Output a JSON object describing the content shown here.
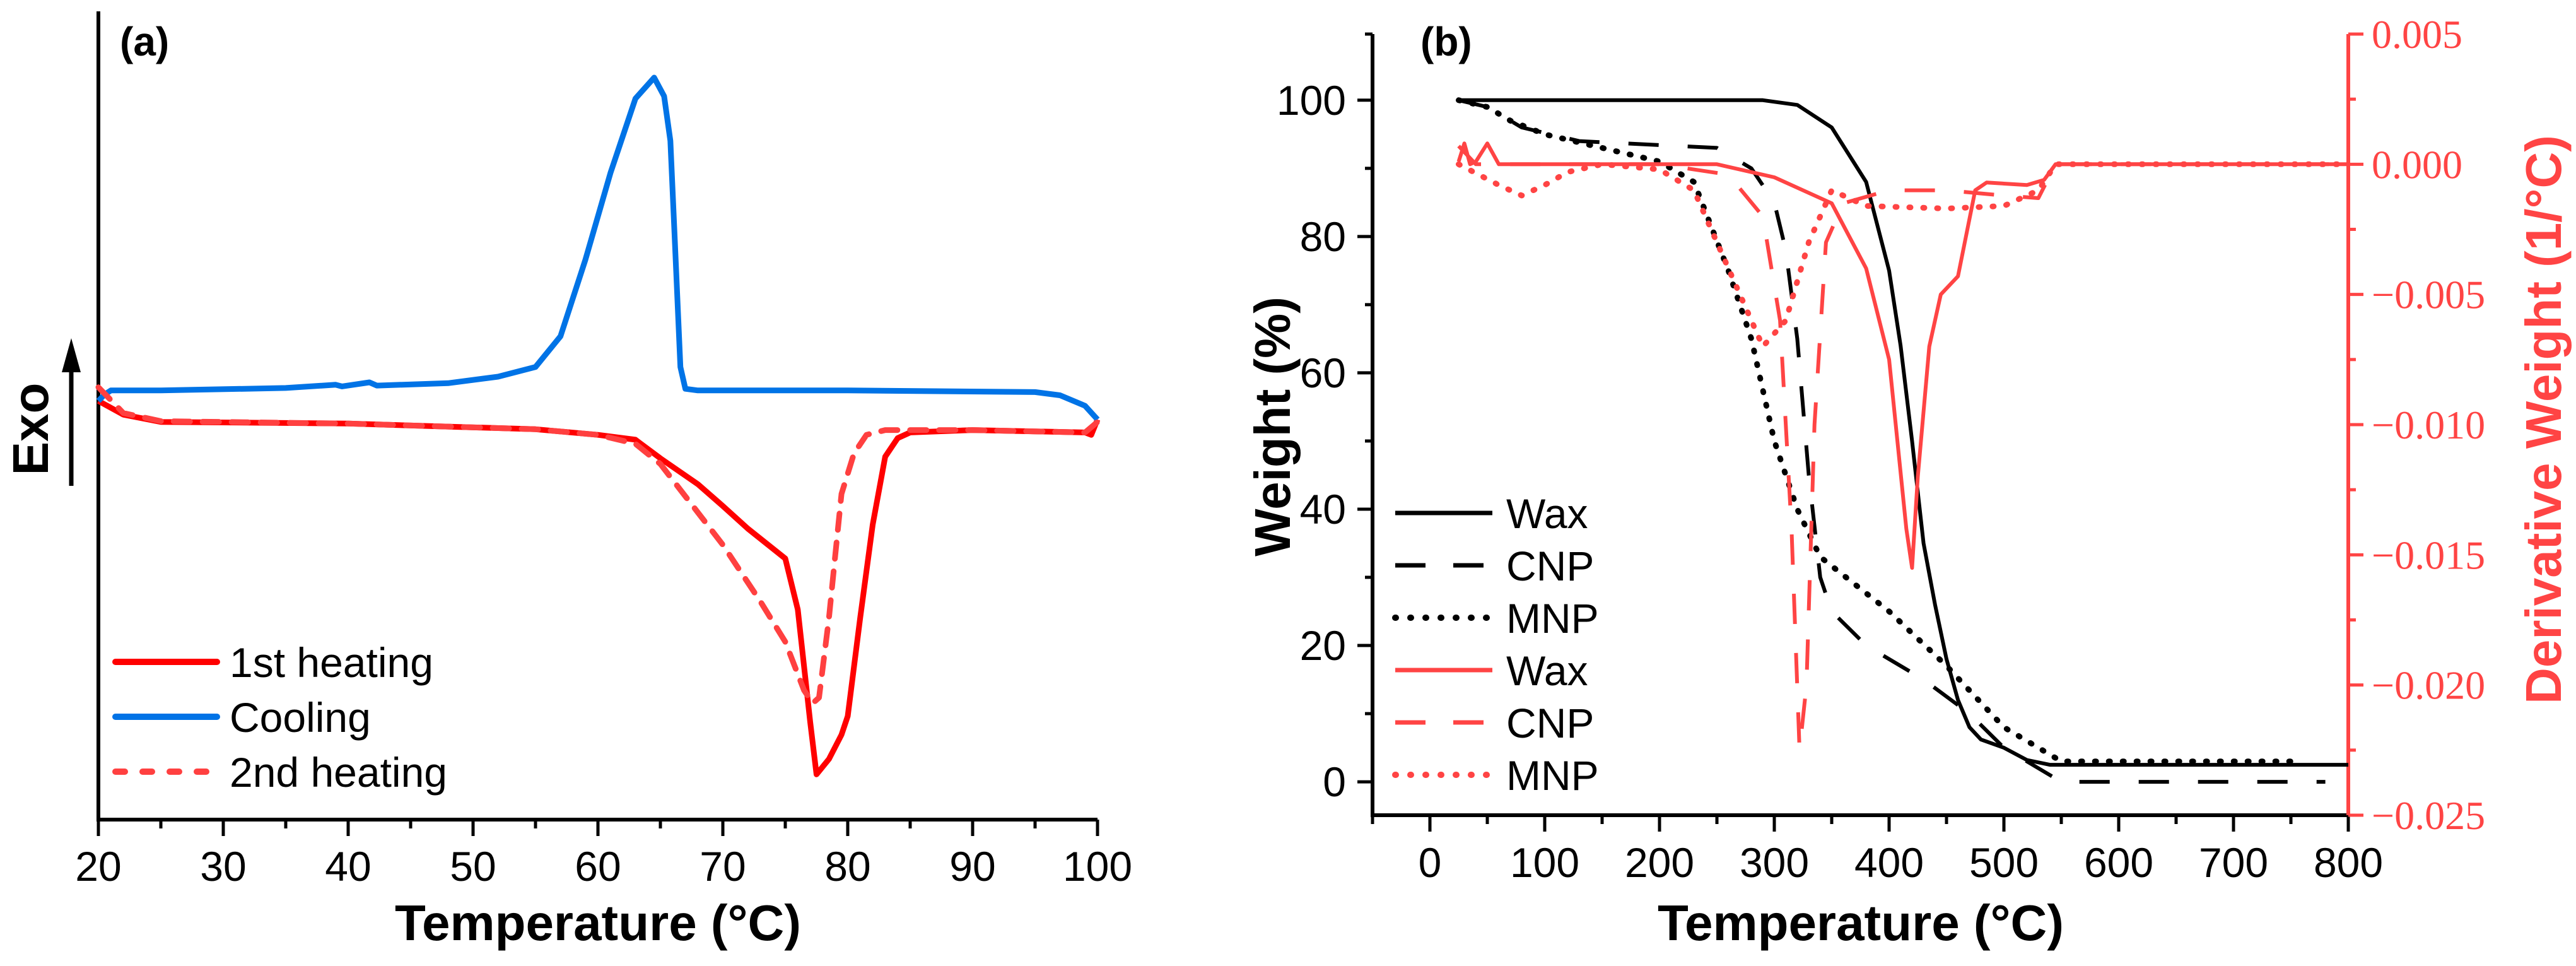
{
  "chart_data": [
    {
      "type": "line",
      "panel_label": "(a)",
      "title": "",
      "xlabel": "Temperature (°C)",
      "ylabel": "Exo",
      "xlim": [
        20,
        100
      ],
      "ylim": [
        0,
        100
      ],
      "xticks": [
        20,
        30,
        40,
        50,
        60,
        70,
        80,
        90,
        100
      ],
      "y_units": "arbitrary heat flow (no ticks)",
      "legend_position": "bottom-left",
      "series": [
        {
          "name": "1st heating",
          "color": "#ff0000",
          "style": "solid",
          "x": [
            20,
            22,
            25,
            40,
            55,
            60,
            63,
            65,
            68,
            70,
            72,
            75,
            76,
            77,
            77.5,
            78.5,
            79.5,
            80,
            81,
            82,
            83,
            84,
            85,
            90,
            99,
            99.5,
            100
          ],
          "y": [
            51.8,
            50.1,
            49.2,
            49,
            48.3,
            47.6,
            47,
            44.7,
            41.5,
            38.8,
            36,
            32.3,
            26,
            12,
            5.6,
            7.5,
            10.5,
            12.8,
            25,
            36.5,
            44.9,
            47.2,
            47.9,
            48.2,
            47.9,
            47.6,
            49.5
          ]
        },
        {
          "name": "Cooling",
          "color": "#0073e6",
          "style": "solid",
          "x": [
            20,
            20.5,
            21,
            25,
            35,
            39,
            39.5,
            41.7,
            42.3,
            48,
            52,
            55,
            57,
            59,
            61,
            63,
            64.5,
            65.3,
            65.8,
            66.2,
            66.6,
            67,
            68,
            80,
            95,
            97,
            99,
            100
          ],
          "y": [
            51.8,
            52.6,
            53.1,
            53.1,
            53.4,
            53.8,
            53.6,
            54.1,
            53.7,
            54,
            54.8,
            56,
            59.8,
            69.3,
            80,
            89.2,
            91.8,
            89.5,
            84,
            70,
            56,
            53.3,
            53.1,
            53.1,
            52.9,
            52.5,
            51.2,
            49.5
          ]
        },
        {
          "name": "2nd heating",
          "color": "#ff4040",
          "style": "dashed",
          "x": [
            20,
            22,
            25,
            40,
            55,
            60,
            63,
            65,
            68,
            70,
            73,
            75,
            76.5,
            77.2,
            77.7,
            78.5,
            79,
            79.5,
            80.5,
            81.5,
            83,
            90,
            99,
            100
          ],
          "y": [
            53.5,
            50.3,
            49.3,
            49,
            48.3,
            47.6,
            46.5,
            44,
            38,
            34,
            27,
            22,
            16,
            14.4,
            15.1,
            25,
            32.7,
            40.3,
            45.3,
            47.6,
            48.2,
            48.2,
            47.9,
            49.2
          ]
        }
      ]
    },
    {
      "type": "line",
      "panel_label": "(b)",
      "title": "",
      "xlabel": "Temperature (°C)",
      "ylabel": "Weight (%)",
      "y2label": "Derivative Weight (1/°C)",
      "xlim": [
        -50,
        800
      ],
      "ylim": [
        -4.9,
        109.7
      ],
      "y2lim": [
        -0.025,
        0.005
      ],
      "xticks": [
        0,
        100,
        200,
        300,
        400,
        500,
        600,
        700,
        800
      ],
      "yticks": [
        0,
        20,
        40,
        60,
        80,
        100
      ],
      "y2ticks": [
        "0.005",
        "0.000",
        "−0.005",
        "−0.010",
        "−0.015",
        "−0.020",
        "−0.025"
      ],
      "y2tick_values": [
        0.005,
        0,
        -0.005,
        -0.01,
        -0.015,
        -0.02,
        -0.025
      ],
      "legend_position": "bottom-left",
      "series": [
        {
          "name": "Wax",
          "axis": "left",
          "color": "#000000",
          "style": "solid",
          "x": [
            25,
            290,
            320,
            350,
            380,
            400,
            410,
            420,
            430,
            440,
            450,
            460,
            470,
            480,
            500,
            520,
            540,
            800
          ],
          "y": [
            100,
            100,
            99.3,
            96,
            88,
            75,
            64,
            50,
            35,
            26,
            18,
            12,
            8,
            6.2,
            5,
            3.2,
            2.5,
            2.5
          ]
        },
        {
          "name": "CNP",
          "axis": "left",
          "color": "#000000",
          "style": "dashed",
          "x": [
            25,
            50,
            80,
            130,
            250,
            280,
            300,
            310,
            320,
            330,
            340,
            350,
            380,
            430,
            470,
            500,
            520,
            550,
            780
          ],
          "y": [
            100,
            99,
            96,
            94,
            93,
            90,
            85,
            78,
            65,
            45,
            30,
            25,
            20,
            15,
            10,
            5,
            3,
            0,
            0
          ]
        },
        {
          "name": "MNP",
          "axis": "left",
          "color": "#000000",
          "style": "dotted",
          "x": [
            25,
            50,
            70,
            100,
            150,
            200,
            230,
            260,
            280,
            300,
            320,
            340,
            400,
            450,
            500,
            550,
            760
          ],
          "y": [
            100,
            99,
            97,
            95,
            93,
            91,
            88,
            75,
            65,
            50,
            40,
            33,
            25,
            17,
            8,
            3,
            3
          ]
        },
        {
          "name": "Wax",
          "axis": "right",
          "color": "#ff4444",
          "style": "solid",
          "x": [
            25,
            30,
            35,
            40,
            50,
            60,
            150,
            250,
            300,
            350,
            380,
            400,
            415,
            420,
            425,
            435,
            445,
            460,
            475,
            485,
            520,
            535,
            545,
            800
          ],
          "y": [
            0.0001,
            0.0008,
            0,
            0.0001,
            0.0008,
            0,
            0,
            0,
            -0.0005,
            -0.0015,
            -0.004,
            -0.0075,
            -0.014,
            -0.0155,
            -0.012,
            -0.007,
            -0.005,
            -0.0043,
            -0.001,
            -0.0007,
            -0.0008,
            -0.0006,
            0,
            0
          ]
        },
        {
          "name": "CNP",
          "axis": "right",
          "color": "#ff4444",
          "style": "dashed",
          "x": [
            25,
            40,
            50,
            100,
            200,
            260,
            290,
            305,
            315,
            322,
            328,
            335,
            345,
            360,
            400,
            450,
            500,
            530,
            545,
            800
          ],
          "y": [
            0.0007,
            0,
            0,
            0,
            0,
            -0.0004,
            -0.002,
            -0.006,
            -0.014,
            -0.0225,
            -0.02,
            -0.01,
            -0.003,
            -0.0015,
            -0.001,
            -0.001,
            -0.0012,
            -0.0013,
            0,
            0
          ]
        },
        {
          "name": "MNP",
          "axis": "right",
          "color": "#ff4444",
          "style": "dotted",
          "x": [
            25,
            60,
            80,
            100,
            120,
            150,
            200,
            230,
            260,
            290,
            310,
            330,
            350,
            380,
            450,
            500,
            530,
            545,
            800
          ],
          "y": [
            0,
            -0.0008,
            -0.0012,
            -0.0008,
            -0.0003,
            0,
            -0.0002,
            -0.001,
            -0.004,
            -0.007,
            -0.006,
            -0.003,
            -0.001,
            -0.0016,
            -0.0017,
            -0.0016,
            -0.001,
            0,
            0
          ]
        }
      ]
    }
  ]
}
